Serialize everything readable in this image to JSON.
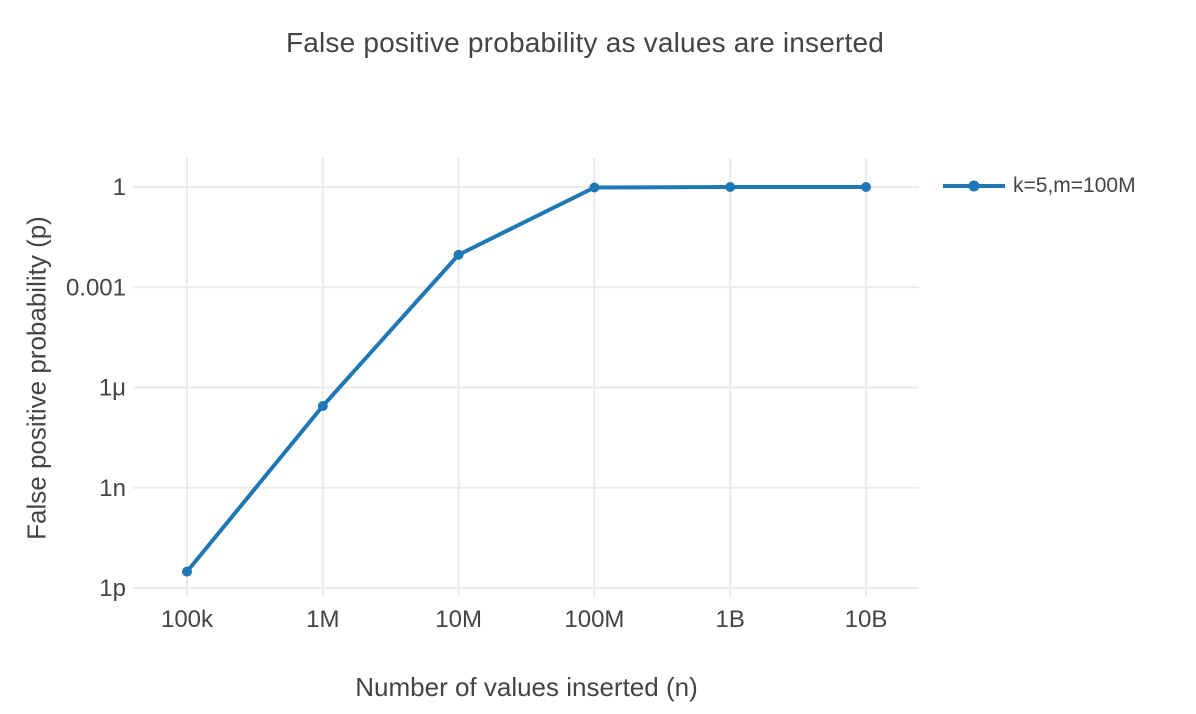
{
  "chart_data": {
    "type": "line",
    "title": "False positive probability as values are inserted",
    "xlabel": "Number of values inserted (n)",
    "ylabel": "False positive probability (p)",
    "x_scale": "log",
    "y_scale": "log",
    "grid": true,
    "legend_position": "top-right-outside",
    "x_ticks": [
      {
        "label": "100k",
        "exponent": 5
      },
      {
        "label": "1M",
        "exponent": 6
      },
      {
        "label": "10M",
        "exponent": 7
      },
      {
        "label": "100M",
        "exponent": 8
      },
      {
        "label": "1B",
        "exponent": 9
      },
      {
        "label": "10B",
        "exponent": 10
      }
    ],
    "y_ticks": [
      {
        "label": "1",
        "exponent": 0
      },
      {
        "label": "0.001",
        "exponent": -3
      },
      {
        "label": "1μ",
        "exponent": -6
      },
      {
        "label": "1n",
        "exponent": -9
      },
      {
        "label": "1p",
        "exponent": -12
      }
    ],
    "xlim_exponents": [
      4.6,
      10.4
    ],
    "ylim_exponents": [
      -12.3,
      0.87
    ],
    "series": [
      {
        "name": "k=5,m=100M",
        "color": "#1f77b4",
        "marker": "circle",
        "x": [
          100000,
          1000000,
          10000000,
          100000000,
          1000000000,
          10000000000
        ],
        "y": [
          3.1e-12,
          2.8e-07,
          0.0094,
          0.967,
          0.99997,
          1.0
        ]
      }
    ]
  },
  "colors": {
    "line": "#1f77b4",
    "grid": "#ebebeb",
    "text": "#444444",
    "background": "#ffffff"
  }
}
